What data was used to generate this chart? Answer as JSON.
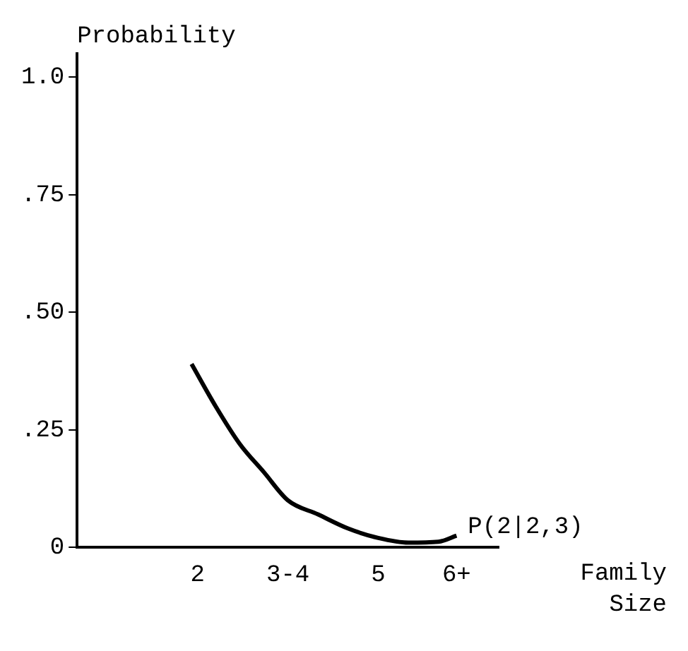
{
  "chart_data": {
    "type": "line",
    "ylabel": "Probability",
    "xlabel": "Family Size",
    "x": [
      1.9,
      2.3,
      2.7,
      3.1,
      3.5,
      4,
      4.5,
      5,
      5.5,
      6,
      6.3
    ],
    "series": [
      {
        "color": "#000000",
        "values": [
          0.39,
          0.3,
          0.22,
          0.16,
          0.1,
          0.07,
          0.04,
          0.02,
          0.01,
          0.012,
          0.025
        ]
      }
    ],
    "xlim": [
      0,
      7
    ],
    "xticks": [
      {
        "value": 2,
        "label": "2"
      },
      {
        "value": 3.5,
        "label": "3-4"
      },
      {
        "value": 5,
        "label": "5"
      },
      {
        "value": 6.3,
        "label": "6+"
      }
    ],
    "ylim": [
      0,
      1.05
    ],
    "yticks": [
      {
        "value": 0,
        "label": "0"
      },
      {
        "value": 0.25,
        "label": ".25"
      },
      {
        "value": 0.5,
        "label": ".50"
      },
      {
        "value": 0.75,
        "label": ".75"
      },
      {
        "value": 1,
        "label": "1.0"
      }
    ],
    "annotations": [
      {
        "text": "P(2|2,3)",
        "x": 6.3,
        "y": 0.025
      }
    ],
    "grid": false,
    "legend": false,
    "marker": "none",
    "line_style": "solid"
  }
}
